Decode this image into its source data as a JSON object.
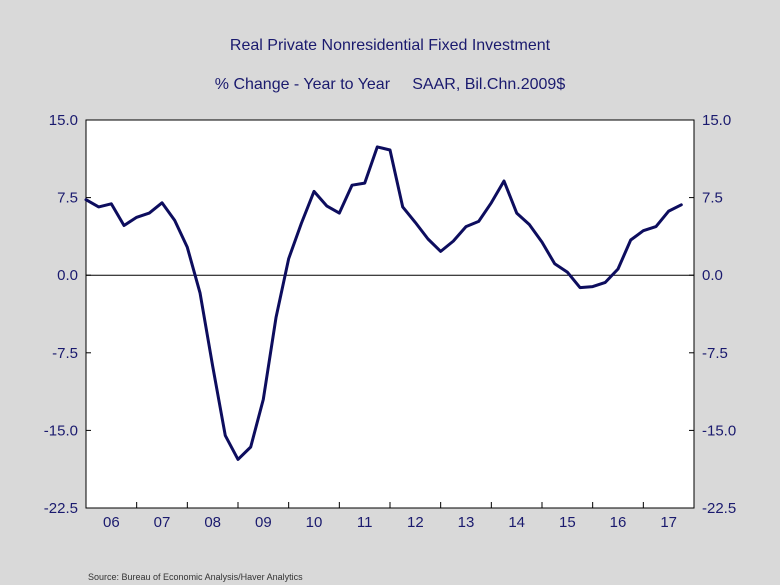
{
  "chart_data": {
    "type": "line",
    "title": "Real Private Nonresidential Fixed Investment",
    "subtitle": "% Change - Year to Year     SAAR, Bil.Chn.2009$",
    "xlabel": "",
    "ylabel": "",
    "ylim": [
      -22.5,
      15.0
    ],
    "yticks": [
      "15.0",
      "7.5",
      "0.0",
      "-7.5",
      "-15.0",
      "-22.5"
    ],
    "ytick_values": [
      15.0,
      7.5,
      0.0,
      -7.5,
      -15.0,
      -22.5
    ],
    "xlim": [
      2006.0,
      2018.0
    ],
    "year_labels": [
      "06",
      "07",
      "08",
      "09",
      "10",
      "11",
      "12",
      "13",
      "14",
      "15",
      "16",
      "17"
    ],
    "grid": false,
    "reference_line": 0.0,
    "line_color": "#0d0d5e",
    "series": [
      {
        "name": "% Change - Year to Year",
        "x": [
          2006.0,
          2006.25,
          2006.5,
          2006.75,
          2007.0,
          2007.25,
          2007.5,
          2007.75,
          2008.0,
          2008.25,
          2008.5,
          2008.75,
          2009.0,
          2009.25,
          2009.5,
          2009.75,
          2010.0,
          2010.25,
          2010.5,
          2010.75,
          2011.0,
          2011.25,
          2011.5,
          2011.75,
          2012.0,
          2012.25,
          2012.5,
          2012.75,
          2013.0,
          2013.25,
          2013.5,
          2013.75,
          2014.0,
          2014.25,
          2014.5,
          2014.75,
          2015.0,
          2015.25,
          2015.5,
          2015.75,
          2016.0,
          2016.25,
          2016.5,
          2016.75,
          2017.0,
          2017.25,
          2017.5,
          2017.75
        ],
        "values": [
          7.3,
          6.6,
          6.9,
          4.8,
          5.6,
          6.0,
          7.0,
          5.3,
          2.7,
          -1.7,
          -8.8,
          -15.5,
          -17.8,
          -16.6,
          -12.0,
          -4.1,
          1.6,
          5.0,
          8.1,
          6.7,
          6.0,
          8.7,
          8.9,
          12.4,
          12.1,
          6.6,
          5.1,
          3.5,
          2.3,
          3.3,
          4.7,
          5.2,
          7.0,
          9.1,
          6.0,
          4.9,
          3.2,
          1.1,
          0.3,
          -1.2,
          -1.1,
          -0.7,
          0.6,
          3.4,
          4.3,
          4.7,
          6.2,
          6.8
        ]
      }
    ]
  },
  "source": "Source:  Bureau of Economic Analysis/Haver Analytics"
}
